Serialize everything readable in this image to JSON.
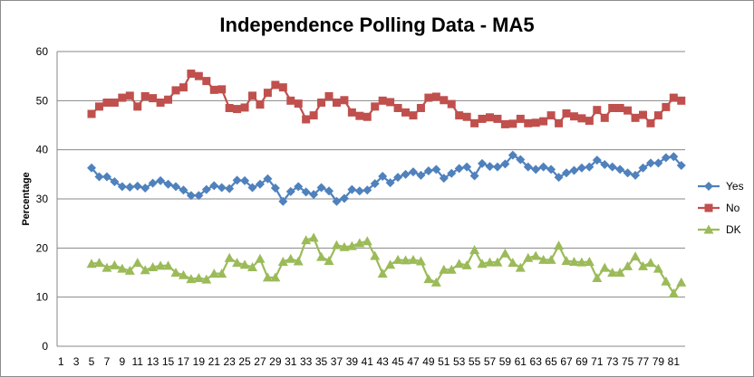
{
  "chart_data": {
    "type": "line",
    "title": "Independence Polling Data - MA5",
    "xlabel": "",
    "ylabel": "Percentage",
    "ylim": [
      0,
      60
    ],
    "yticks": [
      "0",
      "10",
      "20",
      "30",
      "40",
      "50",
      "60"
    ],
    "grid": "horizontal",
    "legend_position": "right",
    "x_tick_labels": [
      "1",
      "3",
      "5",
      "7",
      "9",
      "11",
      "13",
      "15",
      "17",
      "19",
      "21",
      "23",
      "25",
      "27",
      "29",
      "31",
      "33",
      "35",
      "37",
      "39",
      "41",
      "43",
      "45",
      "47",
      "49",
      "51",
      "53",
      "55",
      "57",
      "59",
      "61",
      "63",
      "65",
      "67",
      "69",
      "71",
      "73",
      "75",
      "77",
      "79",
      "81"
    ],
    "x": [
      5,
      6,
      7,
      8,
      9,
      10,
      11,
      12,
      13,
      14,
      15,
      16,
      17,
      18,
      19,
      20,
      21,
      22,
      23,
      24,
      25,
      26,
      27,
      28,
      29,
      30,
      31,
      32,
      33,
      34,
      35,
      36,
      37,
      38,
      39,
      40,
      41,
      42,
      43,
      44,
      45,
      46,
      47,
      48,
      49,
      50,
      51,
      52,
      53,
      54,
      55,
      56,
      57,
      58,
      59,
      60,
      61,
      62,
      63,
      64,
      65,
      66,
      67,
      68,
      69,
      70,
      71,
      72,
      73,
      74,
      75,
      76,
      77,
      78,
      79,
      80,
      81,
      82
    ],
    "series": [
      {
        "name": "Yes",
        "color": "#4f81bd",
        "marker": "diamond",
        "values": [
          36.3,
          34.5,
          34.5,
          33.5,
          32.5,
          32.4,
          32.6,
          32.2,
          33.2,
          33.7,
          33.0,
          32.5,
          31.8,
          30.7,
          30.7,
          31.9,
          32.7,
          32.3,
          32.1,
          33.8,
          33.7,
          32.3,
          33.0,
          34.1,
          32.2,
          29.5,
          31.5,
          32.5,
          31.4,
          30.9,
          32.3,
          31.6,
          29.5,
          30.1,
          31.9,
          31.6,
          31.8,
          33.1,
          34.6,
          33.3,
          34.4,
          35.0,
          35.5,
          34.8,
          35.7,
          36.0,
          34.2,
          35.2,
          36.2,
          36.5,
          34.7,
          37.2,
          36.6,
          36.5,
          37.1,
          38.9,
          38.0,
          36.5,
          36.0,
          36.5,
          36.0,
          34.4,
          35.3,
          35.8,
          36.3,
          36.5,
          37.9,
          37.0,
          36.5,
          36.0,
          35.3,
          34.8,
          36.3,
          37.3,
          37.3,
          38.4,
          38.6,
          36.8
        ]
      },
      {
        "name": "No",
        "color": "#c0504d",
        "marker": "square",
        "values": [
          47.3,
          48.8,
          49.6,
          49.6,
          50.6,
          51.0,
          48.8,
          50.9,
          50.5,
          49.6,
          50.2,
          52.1,
          52.7,
          55.5,
          55.0,
          54.0,
          52.2,
          52.3,
          48.5,
          48.3,
          48.6,
          51.0,
          49.2,
          51.6,
          53.2,
          52.7,
          50.0,
          49.4,
          46.2,
          47.0,
          49.6,
          50.9,
          49.6,
          50.1,
          47.6,
          46.9,
          46.7,
          48.8,
          50.0,
          49.7,
          48.5,
          47.6,
          47.0,
          48.5,
          50.6,
          50.8,
          50.1,
          49.3,
          47.0,
          46.7,
          45.4,
          46.3,
          46.6,
          46.3,
          45.2,
          45.3,
          46.3,
          45.4,
          45.5,
          45.8,
          47.0,
          45.4,
          47.4,
          46.8,
          46.4,
          45.9,
          48.1,
          46.5,
          48.5,
          48.5,
          48.0,
          46.5,
          47.1,
          45.4,
          47.0,
          48.7,
          50.6,
          50.0
        ]
      },
      {
        "name": "DK",
        "color": "#9bbb59",
        "marker": "triangle",
        "values": [
          16.8,
          17.0,
          16.0,
          16.5,
          15.8,
          15.4,
          17.0,
          15.5,
          16.1,
          16.4,
          16.4,
          15.0,
          14.5,
          13.7,
          13.9,
          13.6,
          14.8,
          14.8,
          18.0,
          17.0,
          16.6,
          16.1,
          17.8,
          14.0,
          14.0,
          17.2,
          17.8,
          17.3,
          21.6,
          22.1,
          18.2,
          17.4,
          20.6,
          20.2,
          20.4,
          21.0,
          21.4,
          18.4,
          14.8,
          16.6,
          17.6,
          17.5,
          17.6,
          17.3,
          13.7,
          13.0,
          15.6,
          15.6,
          16.8,
          16.5,
          19.6,
          16.8,
          17.1,
          17.1,
          18.9,
          17.0,
          16.0,
          18.0,
          18.4,
          17.6,
          17.6,
          20.5,
          17.4,
          17.2,
          17.1,
          17.2,
          13.9,
          16.0,
          15.0,
          15.0,
          16.3,
          18.3,
          16.3,
          17.0,
          15.8,
          13.2,
          10.8,
          13.0
        ]
      }
    ]
  }
}
